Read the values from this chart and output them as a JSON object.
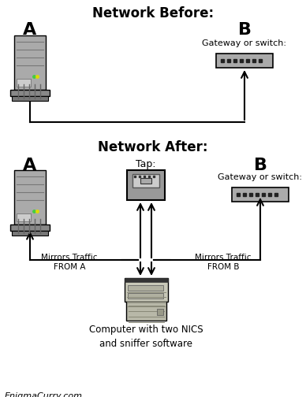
{
  "title_before": "Network Before:",
  "title_after": "Network After:",
  "label_A": "A",
  "label_B": "B",
  "label_tap": "Tap:",
  "label_gateway": "Gateway or switch:",
  "label_mirrors_a": "Mirrors Traffic\nFROM A",
  "label_mirrors_b": "Mirrors Traffic\nFROM B",
  "label_computer": "Computer with two NICS\nand sniffer software",
  "label_footer": "EnigmaCurry.com",
  "bg_color": "#ffffff",
  "line_color": "#000000",
  "server_body": "#aaaaaa",
  "server_mid": "#999999",
  "server_dark": "#777777",
  "server_base": "#888888",
  "switch_face": "#aaaaaa",
  "switch_dot": "#222222",
  "tap_outer": "#999999",
  "tap_inner_bg": "#cccccc",
  "tap_inner_box": "#888888",
  "desktop_top": "#cccccc",
  "desktop_mid": "#aaaaaa",
  "desktop_stripe": "#444444",
  "desktop_bottom": "#bbbbbb"
}
